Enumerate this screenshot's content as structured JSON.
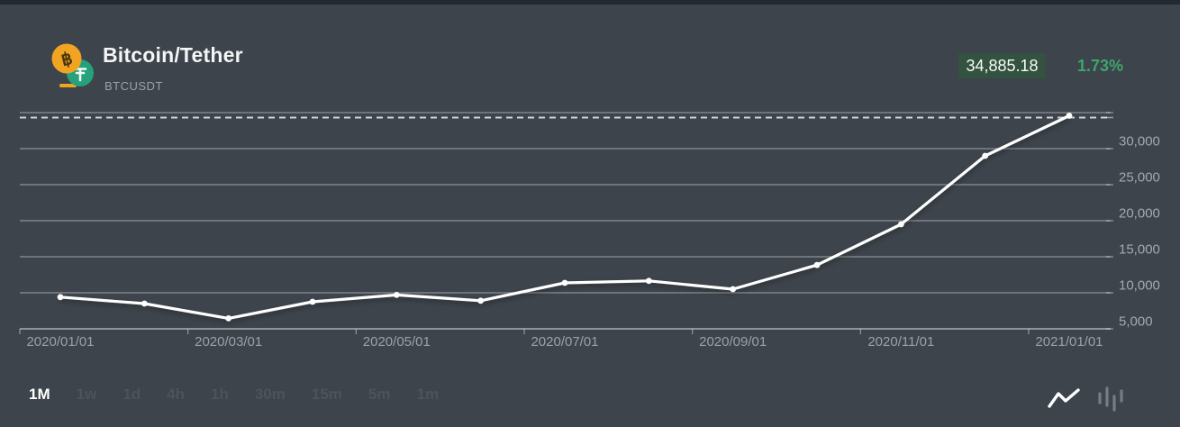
{
  "header": {
    "title": "Bitcoin/Tether",
    "symbol": "BTCUSDT",
    "price": "34,885.18",
    "change_pct": "1.73%"
  },
  "colors": {
    "panel_bg": "#3d444b",
    "top_strip": "#24292f",
    "badge_bg": "#33523f",
    "green": "#3ea56c",
    "bitcoin_orange": "#f0a422",
    "tether_green": "#26a17b",
    "grid_line": "#ffffff",
    "price_line": "#ffffff",
    "axis_text": "#a3a9af",
    "inactive_text": "#4c535b"
  },
  "icons": [
    "btc-usdt-pair-icon",
    "line-chart-icon",
    "candlestick-chart-icon"
  ],
  "intervals": [
    {
      "label": "1M",
      "active": true
    },
    {
      "label": "1w",
      "active": false
    },
    {
      "label": "1d",
      "active": false
    },
    {
      "label": "4h",
      "active": false
    },
    {
      "label": "1h",
      "active": false
    },
    {
      "label": "30m",
      "active": false
    },
    {
      "label": "15m",
      "active": false
    },
    {
      "label": "5m",
      "active": false
    },
    {
      "label": "1m",
      "active": false
    }
  ],
  "chart_data": {
    "type": "line",
    "title": "BTCUSDT monthly price",
    "x": [
      "2020/01/01",
      "2020/02/01",
      "2020/03/01",
      "2020/04/01",
      "2020/05/01",
      "2020/06/01",
      "2020/07/01",
      "2020/08/01",
      "2020/09/01",
      "2020/10/01",
      "2020/11/01",
      "2020/12/01",
      "2021/01/01"
    ],
    "values": [
      9400,
      8500,
      6450,
      8750,
      9700,
      8900,
      11375,
      11650,
      10500,
      13850,
      19500,
      29000,
      34885.18
    ],
    "x_tick_labels": [
      "2020/01/01",
      "2020/03/01",
      "2020/05/01",
      "2020/07/01",
      "2020/09/01",
      "2020/11/01",
      "2021/01/01"
    ],
    "y_ticks": [
      35000,
      30000,
      25000,
      20000,
      15000,
      10000,
      5000
    ],
    "y_tick_labels": [
      "",
      "30,000",
      "25,000",
      "20,000",
      "15,000",
      "10,000",
      "5,000"
    ],
    "ylim": [
      5000,
      35500
    ],
    "current_price": 34885.18,
    "current_price_label": "34,885.18",
    "grid": true,
    "legend": false,
    "marker": "dot",
    "dashed_current_price_line": true
  }
}
